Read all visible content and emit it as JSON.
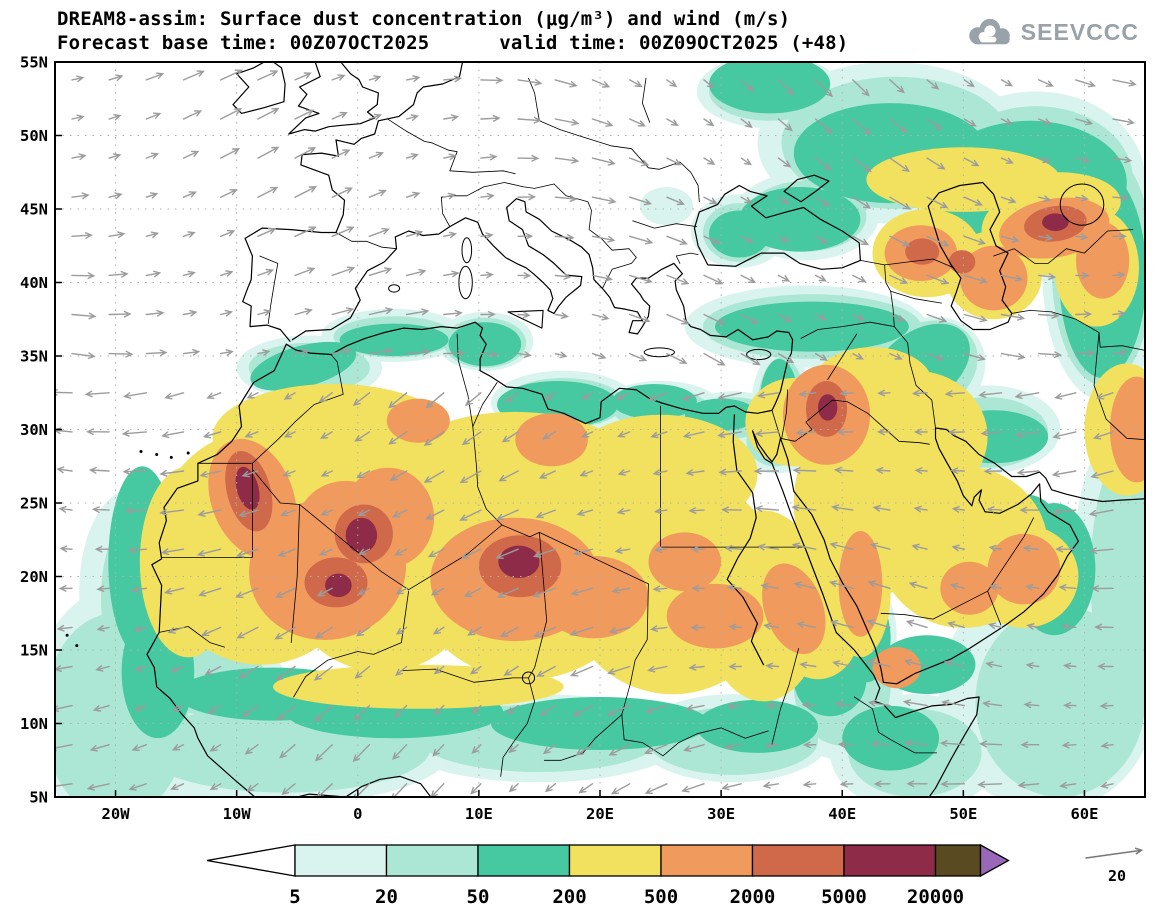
{
  "header": {
    "title_line1": "DREAM8-assim: Surface dust concentration (μg/m³) and wind (m/s)",
    "title_line2": "Forecast base time: 00Z07OCT2025      valid time: 00Z09OCT2025 (+48)",
    "logo_text": "SEEVCCC"
  },
  "axes": {
    "lat_labels": [
      "55N",
      "50N",
      "45N",
      "40N",
      "35N",
      "30N",
      "25N",
      "20N",
      "15N",
      "10N",
      "5N"
    ],
    "lat_values": [
      55,
      50,
      45,
      40,
      35,
      30,
      25,
      20,
      15,
      10,
      5
    ],
    "lon_labels": [
      "20W",
      "10W",
      "0",
      "10E",
      "20E",
      "30E",
      "40E",
      "50E",
      "60E"
    ],
    "lon_values": [
      -20,
      -10,
      0,
      10,
      20,
      30,
      40,
      50,
      60
    ]
  },
  "colorbar": {
    "levels": [
      "5",
      "20",
      "50",
      "200",
      "500",
      "2000",
      "5000",
      "20000"
    ],
    "colors": [
      "#d9f3ee",
      "#abe7d4",
      "#46c8a0",
      "#f1e15e",
      "#f09a5e",
      "#d0694a",
      "#8e2b48",
      "#5a4a22"
    ],
    "under_color": "#ffffff",
    "over_color": "#9a68b8"
  },
  "wind_reference": {
    "value": "20"
  },
  "chart_data": {
    "type": "heatmap",
    "model": "DREAM8-assim",
    "variable": "Surface dust concentration",
    "units": "μg/m³",
    "wind_overlay_units": "m/s",
    "wind_reference_ms": 20,
    "forecast_base_time": "00Z07OCT2025",
    "valid_time": "00Z09OCT2025",
    "lead_time_hours": 48,
    "lon_range": [
      -25,
      65
    ],
    "lat_range": [
      5,
      55
    ],
    "contour_levels_ugm3": [
      5,
      20,
      50,
      200,
      500,
      2000,
      5000,
      20000
    ],
    "palette": [
      "#d9f3ee",
      "#abe7d4",
      "#46c8a0",
      "#f1e15e",
      "#f09a5e",
      "#d0694a",
      "#8e2b48",
      "#5a4a22"
    ],
    "features": [
      {
        "region": "NE Mali / SW Algeria dust core",
        "concentration_ugm3": "5000-20000"
      },
      {
        "region": "Niger-Chad border (Bilma) dust core",
        "concentration_ugm3": "5000-20000"
      },
      {
        "region": "Southern Morocco / Western Sahara",
        "concentration_ugm3": "2000-10000"
      },
      {
        "region": "Broad Sahara belt 12N-32N, Atlantic coast to Red Sea",
        "concentration_ugm3": "200-2000"
      },
      {
        "region": "Northern Saudi Arabia / Jordan border",
        "concentration_ugm3": "2000-5000"
      },
      {
        "region": "Arabian Peninsula interior",
        "concentration_ugm3": "200-1000"
      },
      {
        "region": "Caucasus and east of Caspian (Turkmenistan)",
        "concentration_ugm3": "500-5000"
      },
      {
        "region": "Sahel fringe, Maghreb coast, Horn of Africa, Arabian Sea, Black Sea-Caspian belt",
        "concentration_ugm3": "5-200"
      },
      {
        "region": "Western and central Europe, NE Atlantic, central Mediterranean",
        "concentration_ugm3": "< 5"
      }
    ],
    "wind_pattern": [
      {
        "region": "Sahara and Sahel",
        "direction": "easterly to northeasterly (harmattan), toward WSW"
      },
      {
        "region": "Mediterranean and Europe",
        "direction": "westerly, toward E/ESE"
      },
      {
        "region": "NE Atlantic",
        "direction": "west-northwesterly"
      }
    ]
  }
}
